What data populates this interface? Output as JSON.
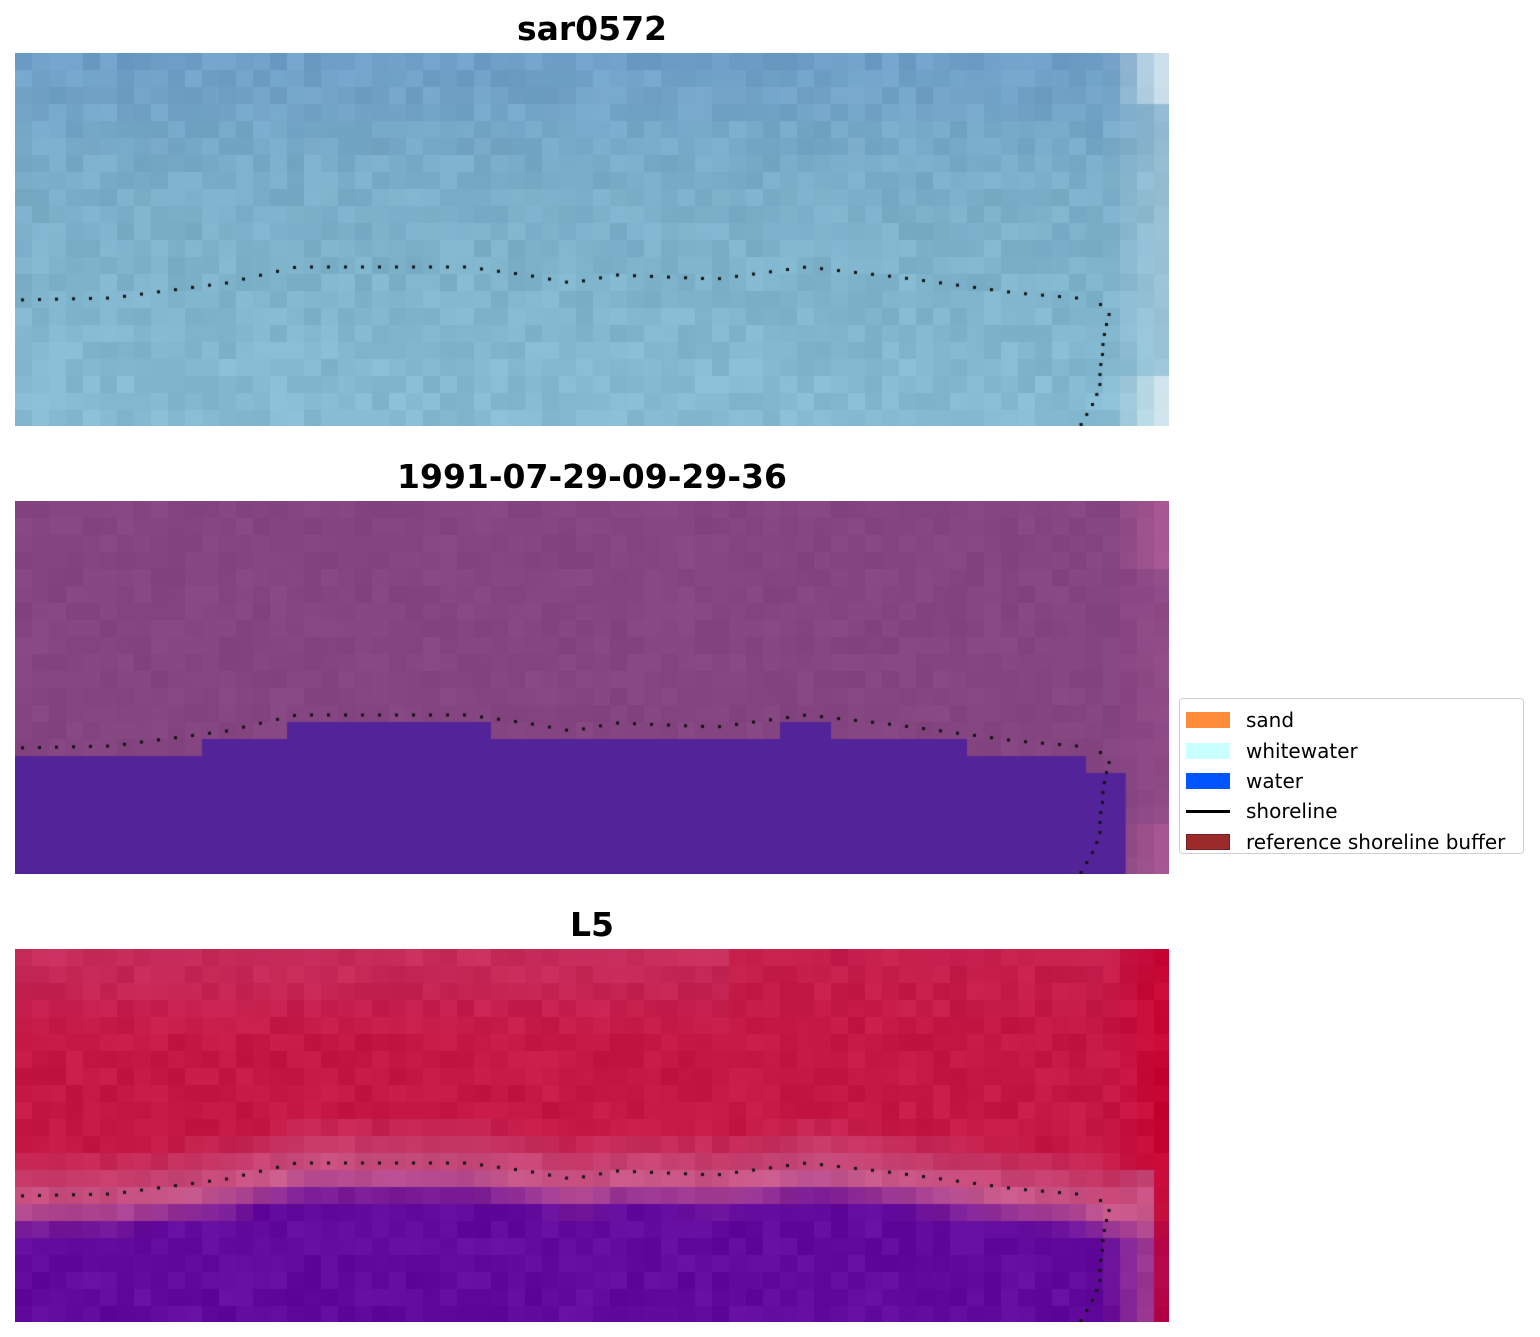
{
  "panels": [
    {
      "title": "sar0572",
      "kind": "rgb",
      "colors": {
        "base": "#7aaec8",
        "top": "#6f9fc7",
        "bottom": "#86bcd3",
        "edge": "#e6f2f5"
      }
    },
    {
      "title": "1991-07-29-09-29-36",
      "kind": "classified",
      "colors": {
        "land": "#844581",
        "water": "#53239a",
        "edge": "#b7609b"
      }
    },
    {
      "title": "L5",
      "kind": "index",
      "colors": {
        "land": "#c51845",
        "pinkband": "#c85a8b",
        "water": "#620a9c",
        "edge": "#c8002e"
      }
    }
  ],
  "legend": {
    "items": [
      {
        "label": "sand",
        "color": "#ff8c3a",
        "kind": "patch"
      },
      {
        "label": "whitewater",
        "color": "#c8ffff",
        "kind": "patch"
      },
      {
        "label": "water",
        "color": "#0055ff",
        "kind": "patch"
      },
      {
        "label": "shoreline",
        "color": "#000000",
        "kind": "line"
      },
      {
        "label": "reference shoreline buffer",
        "color": "#9b2b2b",
        "kind": "patch"
      }
    ]
  }
}
